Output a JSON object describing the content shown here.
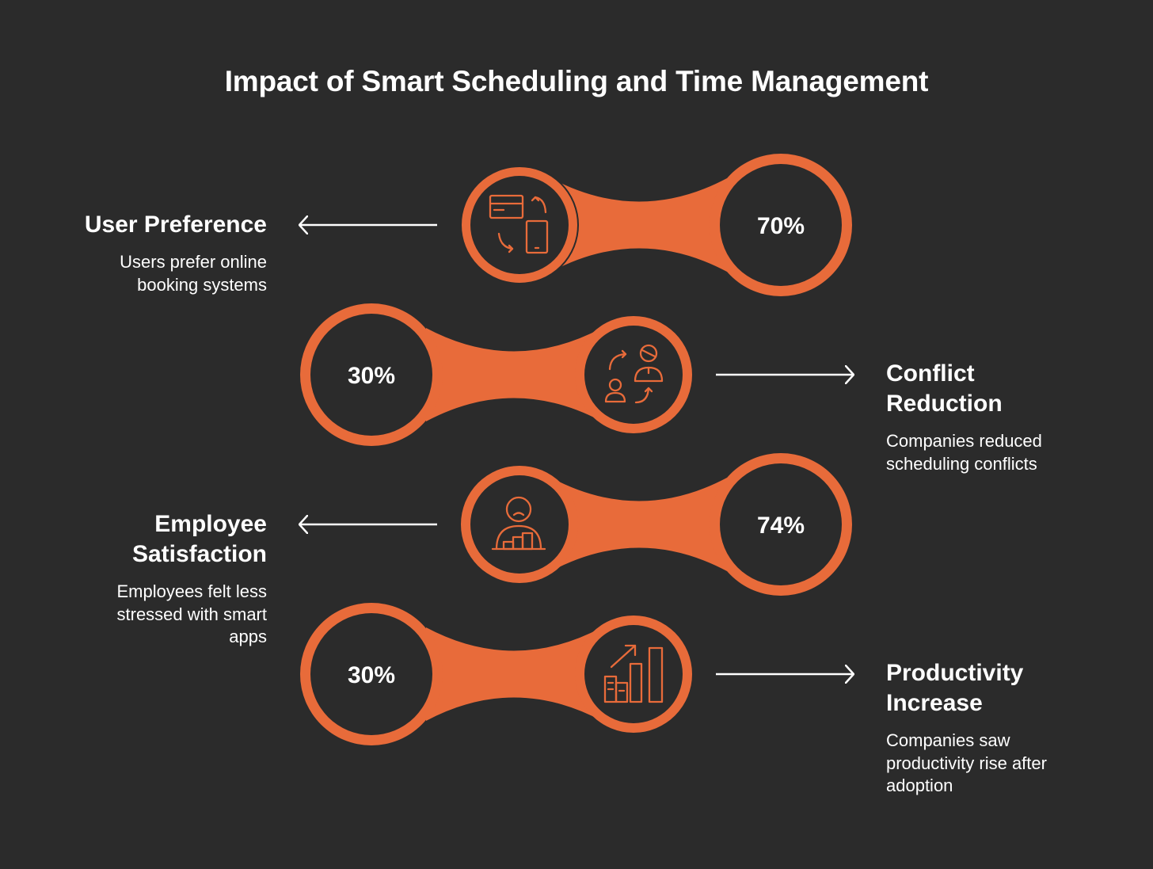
{
  "title": "Impact of Smart Scheduling and Time Management",
  "colors": {
    "background": "#2b2b2b",
    "accent": "#e86b3a",
    "text": "#ffffff"
  },
  "items": [
    {
      "value": "70%",
      "heading": "User Preference",
      "description": "Users prefer online booking systems",
      "icon": "calendar-phone-sync-icon",
      "side": "left"
    },
    {
      "value": "30%",
      "heading": "Conflict Reduction",
      "description": "Companies reduced scheduling conflicts",
      "icon": "people-exchange-icon",
      "side": "right"
    },
    {
      "value": "74%",
      "heading": "Employee Satisfaction",
      "description": "Employees felt less stressed with smart apps",
      "icon": "person-desk-icon",
      "side": "left"
    },
    {
      "value": "30%",
      "heading": "Productivity Increase",
      "description": "Companies saw productivity rise after adoption",
      "icon": "growth-chart-icon",
      "side": "right"
    }
  ]
}
